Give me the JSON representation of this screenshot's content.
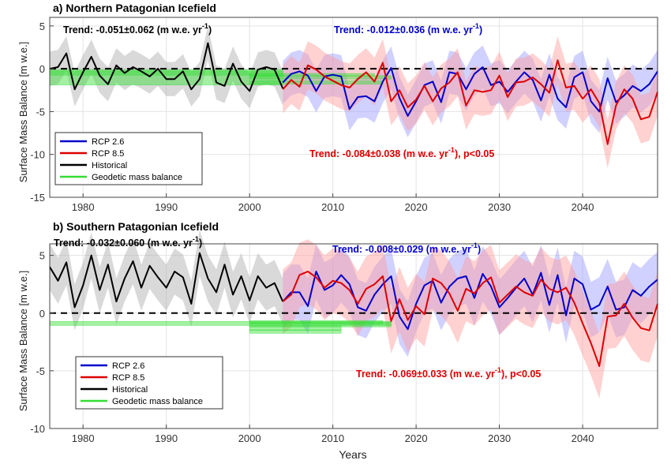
{
  "figure": {
    "xlabel": "Years",
    "ylabel": "Surface Mass Balance [m w.e.]"
  },
  "chart_data": [
    {
      "type": "line",
      "title": "a) Northern Patagonian Icefield",
      "xlim": [
        1976,
        2049
      ],
      "ylim": [
        -15,
        6
      ],
      "xticks": [
        1980,
        1990,
        2000,
        2010,
        2020,
        2030,
        2040
      ],
      "yticks": [
        5,
        0,
        -5,
        -10,
        -15
      ],
      "ytick_labels": [
        "5",
        "0",
        "-5",
        "-10",
        "-15"
      ],
      "grid": true,
      "zero_line": true,
      "legend_position": "lower-left",
      "colors": {
        "historical": "#000000",
        "rcp26": "#0000cc",
        "rcp85": "#dd0000",
        "geodetic": "#33dd33",
        "historical_band": "#aaaaaa",
        "rcp26_band": "#9999ff",
        "rcp85_band": "#ff9999"
      },
      "series": [
        {
          "name": "Historical",
          "key": "historical",
          "x": [
            1976,
            1977,
            1978,
            1979,
            1980,
            1981,
            1982,
            1983,
            1984,
            1985,
            1986,
            1987,
            1988,
            1989,
            1990,
            1991,
            1992,
            1993,
            1994,
            1995,
            1996,
            1997,
            1998,
            1999,
            2000,
            2001,
            2002,
            2003,
            2004
          ],
          "y": [
            0.0,
            0.2,
            1.8,
            -2.4,
            -0.4,
            1.4,
            -0.8,
            -1.8,
            0.4,
            -0.5,
            0.2,
            -0.3,
            -0.9,
            0.0,
            -1.2,
            -1.2,
            -0.3,
            -2.4,
            -1.2,
            3.0,
            -1.6,
            -2.0,
            0.6,
            -1.5,
            -2.6,
            -0.1,
            0.2,
            -0.1,
            -2.3
          ],
          "band": 2.0
        },
        {
          "name": "RCP 2.6",
          "key": "rcp26",
          "x": [
            2004,
            2005,
            2006,
            2007,
            2008,
            2009,
            2010,
            2011,
            2012,
            2013,
            2014,
            2015,
            2016,
            2017,
            2018,
            2019,
            2020,
            2021,
            2022,
            2023,
            2024,
            2025,
            2026,
            2027,
            2028,
            2029,
            2030,
            2031,
            2032,
            2033,
            2034,
            2035,
            2036,
            2037,
            2038,
            2039,
            2040,
            2041,
            2042,
            2043,
            2044,
            2045,
            2046,
            2047,
            2048,
            2049
          ],
          "y": [
            -1.6,
            -0.6,
            -0.3,
            -0.8,
            -2.6,
            -0.9,
            -0.7,
            -0.9,
            -4.7,
            -3.3,
            -3.2,
            -3.8,
            -1.5,
            0.1,
            -3.4,
            -5.5,
            -3.8,
            -1.9,
            -1.5,
            -3.9,
            -0.4,
            -0.6,
            -2.4,
            -0.6,
            0.2,
            -1.9,
            -1.5,
            -2.7,
            -1.5,
            -0.4,
            -1.3,
            -3.7,
            -0.7,
            -3.5,
            -4.5,
            -1.0,
            -0.4,
            -3.8,
            -5.0,
            -1.1,
            -3.9,
            -3.1,
            -2.0,
            -2.6,
            -1.8,
            -0.3
          ],
          "band": 2.5
        },
        {
          "name": "RCP 8.5",
          "key": "rcp85",
          "x": [
            2004,
            2005,
            2006,
            2007,
            2008,
            2009,
            2010,
            2011,
            2012,
            2013,
            2014,
            2015,
            2016,
            2017,
            2018,
            2019,
            2020,
            2021,
            2022,
            2023,
            2024,
            2025,
            2026,
            2027,
            2028,
            2029,
            2030,
            2031,
            2032,
            2033,
            2034,
            2035,
            2036,
            2037,
            2038,
            2039,
            2040,
            2041,
            2042,
            2043,
            2044,
            2045,
            2046,
            2047,
            2048,
            2049
          ],
          "y": [
            -2.4,
            -1.3,
            -2.1,
            0.4,
            -0.1,
            -0.9,
            -1.4,
            -1.9,
            -2.2,
            -1.2,
            -0.4,
            -1.5,
            0.7,
            -3.8,
            -2.5,
            -4.5,
            -3.6,
            -2.0,
            -3.8,
            -2.3,
            -1.6,
            -0.4,
            -4.3,
            -2.5,
            -2.7,
            -2.5,
            -0.8,
            -3.3,
            -1.6,
            -1.5,
            -1.0,
            -1.8,
            -2.8,
            1.0,
            -2.2,
            -2.0,
            -3.5,
            -2.4,
            -4.0,
            -8.8,
            -4.3,
            -2.4,
            -3.5,
            -5.9,
            -5.6,
            -2.7
          ],
          "band": 2.8
        }
      ],
      "geodetic": [
        {
          "x0": 1976,
          "x1": 2004,
          "y": -0.5,
          "h": 0.5
        },
        {
          "x0": 1976,
          "x1": 2004,
          "y": -1.0,
          "h": 1.8
        },
        {
          "x0": 2000,
          "x1": 2017,
          "y": -1.0,
          "h": 0.4
        },
        {
          "x0": 2000,
          "x1": 2016,
          "y": -1.6,
          "h": 0.4
        },
        {
          "x0": 2000,
          "x1": 2015,
          "y": -0.7,
          "h": 0.3
        }
      ],
      "legend": [
        "RCP 2.6",
        "RCP 8.5",
        "Historical",
        "Geodetic mass balance"
      ],
      "annotations": [
        {
          "text": "Trend: -0.051±0.062 (m w.e. yr",
          "sup": "-1",
          "tail": ")",
          "color": "#000000"
        },
        {
          "text": "Trend: -0.012±0.036 (m w.e. yr",
          "sup": "-1",
          "tail": ")",
          "color": "#0000cc"
        },
        {
          "text": "Trend: -0.084±0.038 (m w.e. yr",
          "sup": "-1",
          "tail": "), p<0.05",
          "color": "#dd0000"
        }
      ]
    },
    {
      "type": "line",
      "title": "b) Southern Patagonian Icefield",
      "xlim": [
        1976,
        2049
      ],
      "ylim": [
        -10,
        6
      ],
      "xticks": [
        1980,
        1990,
        2000,
        2010,
        2020,
        2030,
        2040
      ],
      "yticks": [
        5,
        0,
        -5,
        -10
      ],
      "ytick_labels": [
        "5",
        "0",
        "-5",
        "-10"
      ],
      "grid": true,
      "zero_line": true,
      "legend_position": "lower-left",
      "colors": {
        "historical": "#000000",
        "rcp26": "#0000cc",
        "rcp85": "#dd0000",
        "geodetic": "#33dd33",
        "historical_band": "#aaaaaa",
        "rcp26_band": "#9999ff",
        "rcp85_band": "#ff9999"
      },
      "series": [
        {
          "name": "Historical",
          "key": "historical",
          "x": [
            1976,
            1977,
            1978,
            1979,
            1980,
            1981,
            1982,
            1983,
            1984,
            1985,
            1986,
            1987,
            1988,
            1989,
            1990,
            1991,
            1992,
            1993,
            1994,
            1995,
            1996,
            1997,
            1998,
            1999,
            2000,
            2001,
            2002,
            2003,
            2004
          ],
          "y": [
            4.0,
            2.8,
            4.4,
            0.5,
            2.4,
            5.0,
            2.0,
            4.2,
            1.0,
            3.0,
            4.5,
            2.2,
            4.1,
            3.1,
            2.2,
            3.6,
            3.1,
            0.8,
            5.2,
            3.0,
            1.8,
            4.2,
            1.6,
            3.2,
            1.1,
            3.2,
            2.2,
            2.6,
            1.0
          ],
          "band": 2.0
        },
        {
          "name": "RCP 2.6",
          "key": "rcp26",
          "x": [
            2004,
            2005,
            2006,
            2007,
            2008,
            2009,
            2010,
            2011,
            2012,
            2013,
            2014,
            2015,
            2016,
            2017,
            2018,
            2019,
            2020,
            2021,
            2022,
            2023,
            2024,
            2025,
            2026,
            2027,
            2028,
            2029,
            2030,
            2031,
            2032,
            2033,
            2034,
            2035,
            2036,
            2037,
            2038,
            2039,
            2040,
            2041,
            2042,
            2043,
            2044,
            2045,
            2046,
            2047,
            2048,
            2049
          ],
          "y": [
            1.0,
            1.8,
            1.8,
            0.6,
            3.6,
            2.0,
            2.4,
            3.3,
            2.5,
            0.5,
            0.2,
            1.6,
            2.5,
            3.2,
            -0.3,
            -1.4,
            0.8,
            2.4,
            2.8,
            0.9,
            2.3,
            3.0,
            3.2,
            1.3,
            3.4,
            2.3,
            0.5,
            1.3,
            2.2,
            3.0,
            1.6,
            3.5,
            0.7,
            3.3,
            -0.2,
            3.0,
            2.5,
            0.3,
            0.7,
            2.3,
            0.3,
            0.5,
            2.0,
            1.5,
            2.3,
            2.9
          ],
          "band": 2.4
        },
        {
          "name": "RCP 8.5",
          "key": "rcp85",
          "x": [
            2004,
            2005,
            2006,
            2007,
            2008,
            2009,
            2010,
            2011,
            2012,
            2013,
            2014,
            2015,
            2016,
            2017,
            2018,
            2019,
            2020,
            2021,
            2022,
            2023,
            2024,
            2025,
            2026,
            2027,
            2028,
            2029,
            2030,
            2031,
            2032,
            2033,
            2034,
            2035,
            2036,
            2037,
            2038,
            2039,
            2040,
            2041,
            2042,
            2043,
            2044,
            2045,
            2046,
            2047,
            2048,
            2049
          ],
          "y": [
            1.0,
            1.6,
            3.3,
            3.6,
            3.1,
            2.2,
            2.8,
            2.6,
            2.0,
            0.8,
            2.1,
            2.5,
            3.2,
            -0.7,
            1.2,
            -0.6,
            0.6,
            -0.1,
            3.0,
            2.6,
            1.7,
            0.2,
            2.1,
            1.7,
            2.6,
            3.1,
            0.9,
            1.6,
            2.3,
            1.8,
            1.5,
            2.9,
            2.1,
            1.8,
            2.2,
            0.9,
            -0.9,
            -2.6,
            -4.6,
            -0.3,
            -0.2,
            0.8,
            -0.4,
            -1.3,
            -1.5,
            0.8
          ],
          "band": 2.8
        }
      ],
      "geodetic": [
        {
          "x0": 1976,
          "x1": 2017,
          "y": -0.9,
          "h": 0.35
        },
        {
          "x0": 2000,
          "x1": 2017,
          "y": -1.0,
          "h": 0.4
        },
        {
          "x0": 2000,
          "x1": 2011,
          "y": -1.3,
          "h": 0.4
        },
        {
          "x0": 2000,
          "x1": 2011,
          "y": -1.6,
          "h": 0.3
        },
        {
          "x0": 2000,
          "x1": 2016,
          "y": -0.8,
          "h": 0.3
        }
      ],
      "legend": [
        "RCP 2.6",
        "RCP 8.5",
        "Historical",
        "Geodetic mass balance"
      ],
      "annotations": [
        {
          "text": "Trend: -0.032±0.060 (m w.e. yr",
          "sup": "-1",
          "tail": ")",
          "color": "#000000"
        },
        {
          "text": "Trend: -0.008±0.029 (m w.e. yr",
          "sup": "-1",
          "tail": ")",
          "color": "#0000cc"
        },
        {
          "text": "Trend: -0.069±0.033 (m w.e. yr",
          "sup": "-1",
          "tail": "), p<0.05",
          "color": "#dd0000"
        }
      ]
    }
  ]
}
